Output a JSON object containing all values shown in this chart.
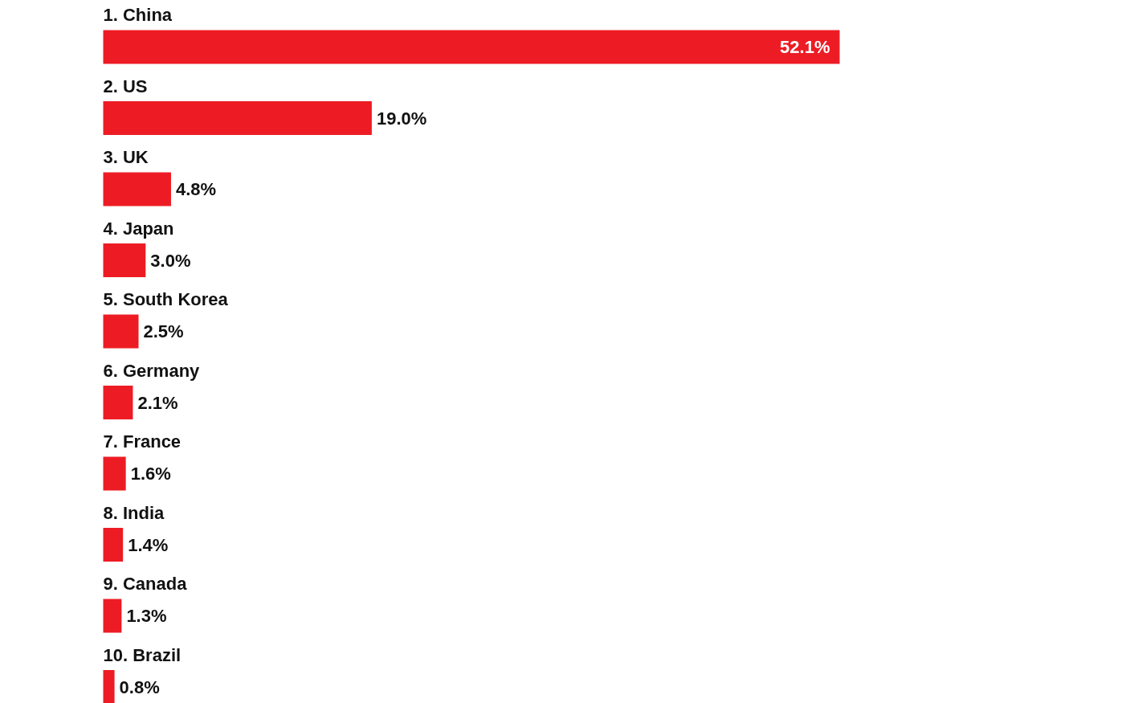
{
  "chart_data": {
    "type": "bar",
    "orientation": "horizontal",
    "categories": [
      "1. China",
      "2. US",
      "3. UK",
      "4. Japan",
      "5. South Korea",
      "6. Germany",
      "7. France",
      "8. India",
      "9. Canada",
      "10. Brazil"
    ],
    "values": [
      52.1,
      19.0,
      4.8,
      3.0,
      2.5,
      2.1,
      1.6,
      1.4,
      1.3,
      0.8
    ],
    "value_labels": [
      "52.1%",
      "19.0%",
      "4.8%",
      "3.0%",
      "2.5%",
      "2.1%",
      "1.6%",
      "1.4%",
      "1.3%",
      "0.8%"
    ],
    "color": "#ed1c24"
  }
}
